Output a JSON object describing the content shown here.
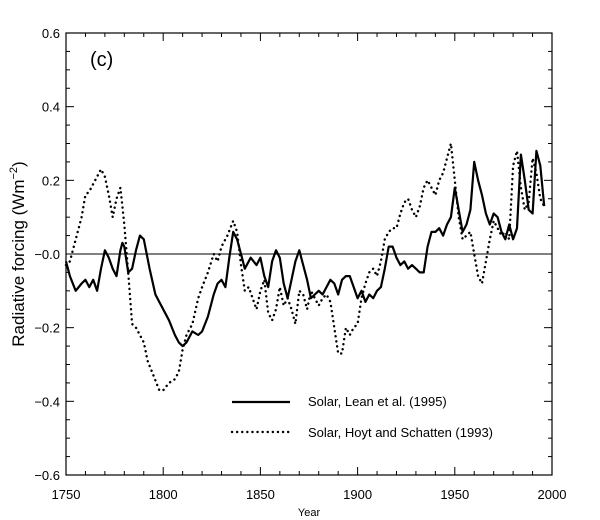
{
  "chart_data": {
    "type": "line",
    "panel_label": "(c)",
    "xlabel": "Year",
    "ylabel_main": "Radiative forcing (Wm",
    "ylabel_sup": "−2",
    "ylabel_close": ")",
    "xlim": [
      1750,
      2000
    ],
    "ylim": [
      -0.6,
      0.6
    ],
    "xticks": [
      1750,
      1800,
      1850,
      1900,
      1950,
      2000
    ],
    "xtick_labels": [
      "1750",
      "1800",
      "1850",
      "1900",
      "1950",
      "2000"
    ],
    "yticks": [
      -0.6,
      -0.4,
      -0.2,
      0.0,
      0.2,
      0.4,
      0.6
    ],
    "ytick_labels": [
      "−0.6",
      "−0.4",
      "−0.2",
      "−0.0",
      "0.2",
      "0.4",
      "0.6"
    ],
    "zero_line": true,
    "legend_placement": "bottom-center",
    "series": [
      {
        "name": "Solar, Lean et al. (1995)",
        "style": "solid",
        "x": [
          1750,
          1752,
          1755,
          1758,
          1760,
          1762,
          1764,
          1766,
          1768,
          1770,
          1772,
          1774,
          1776,
          1778,
          1779,
          1780,
          1782,
          1784,
          1786,
          1788,
          1790,
          1793,
          1796,
          1800,
          1803,
          1806,
          1808,
          1810,
          1812,
          1815,
          1818,
          1820,
          1823,
          1826,
          1828,
          1830,
          1832,
          1834,
          1836,
          1838,
          1840,
          1842,
          1845,
          1848,
          1850,
          1852,
          1854,
          1856,
          1858,
          1860,
          1862,
          1864,
          1866,
          1868,
          1870,
          1872,
          1874,
          1876,
          1878,
          1880,
          1882,
          1884,
          1886,
          1888,
          1890,
          1892,
          1894,
          1896,
          1898,
          1900,
          1902,
          1904,
          1906,
          1908,
          1910,
          1912,
          1914,
          1916,
          1918,
          1920,
          1922,
          1924,
          1926,
          1928,
          1930,
          1932,
          1934,
          1936,
          1938,
          1940,
          1942,
          1944,
          1946,
          1948,
          1950,
          1952,
          1954,
          1956,
          1958,
          1960,
          1962,
          1964,
          1966,
          1968,
          1970,
          1972,
          1974,
          1976,
          1978,
          1980,
          1982,
          1984,
          1986,
          1988,
          1990,
          1992,
          1994,
          1996
        ],
        "y": [
          -0.02,
          -0.06,
          -0.1,
          -0.08,
          -0.07,
          -0.09,
          -0.07,
          -0.1,
          -0.04,
          0.01,
          -0.01,
          -0.04,
          -0.06,
          0.01,
          0.03,
          0.02,
          -0.05,
          -0.04,
          0.01,
          0.05,
          0.04,
          -0.04,
          -0.11,
          -0.15,
          -0.18,
          -0.22,
          -0.24,
          -0.25,
          -0.24,
          -0.21,
          -0.22,
          -0.21,
          -0.17,
          -0.11,
          -0.08,
          -0.07,
          -0.09,
          -0.01,
          0.06,
          0.04,
          0.0,
          -0.04,
          -0.01,
          -0.03,
          -0.01,
          -0.06,
          -0.09,
          -0.02,
          0.01,
          -0.01,
          -0.08,
          -0.12,
          -0.07,
          -0.02,
          0.01,
          -0.03,
          -0.07,
          -0.12,
          -0.11,
          -0.1,
          -0.11,
          -0.09,
          -0.07,
          -0.08,
          -0.11,
          -0.07,
          -0.06,
          -0.06,
          -0.09,
          -0.12,
          -0.1,
          -0.13,
          -0.11,
          -0.12,
          -0.1,
          -0.09,
          -0.04,
          0.02,
          0.02,
          -0.01,
          -0.03,
          -0.02,
          -0.04,
          -0.03,
          -0.04,
          -0.05,
          -0.05,
          0.02,
          0.06,
          0.06,
          0.07,
          0.05,
          0.08,
          0.1,
          0.18,
          0.12,
          0.06,
          0.08,
          0.12,
          0.25,
          0.2,
          0.16,
          0.11,
          0.08,
          0.11,
          0.1,
          0.06,
          0.04,
          0.08,
          0.04,
          0.07,
          0.27,
          0.2,
          0.12,
          0.11,
          0.28,
          0.24,
          0.13
        ]
      },
      {
        "name": "Solar, Hoyt and Schatten (1993)",
        "style": "dotted",
        "x": [
          1750,
          1752,
          1754,
          1756,
          1758,
          1760,
          1762,
          1764,
          1766,
          1768,
          1770,
          1772,
          1774,
          1776,
          1778,
          1780,
          1782,
          1784,
          1786,
          1788,
          1790,
          1792,
          1795,
          1798,
          1800,
          1803,
          1806,
          1808,
          1810,
          1812,
          1815,
          1818,
          1820,
          1823,
          1826,
          1828,
          1830,
          1833,
          1836,
          1838,
          1840,
          1842,
          1844,
          1846,
          1848,
          1850,
          1852,
          1854,
          1856,
          1858,
          1860,
          1862,
          1864,
          1866,
          1868,
          1870,
          1872,
          1874,
          1876,
          1878,
          1880,
          1882,
          1884,
          1886,
          1888,
          1890,
          1892,
          1894,
          1896,
          1898,
          1900,
          1902,
          1904,
          1906,
          1908,
          1910,
          1912,
          1914,
          1916,
          1918,
          1920,
          1922,
          1924,
          1926,
          1928,
          1930,
          1932,
          1934,
          1936,
          1938,
          1940,
          1942,
          1944,
          1946,
          1948,
          1950,
          1952,
          1954,
          1956,
          1958,
          1960,
          1962,
          1964,
          1966,
          1968,
          1970,
          1972,
          1974,
          1976,
          1978,
          1980,
          1982,
          1984,
          1986,
          1988,
          1990,
          1992,
          1994,
          1996
        ],
        "y": [
          -0.03,
          -0.02,
          0.02,
          0.06,
          0.1,
          0.16,
          0.17,
          0.19,
          0.21,
          0.23,
          0.21,
          0.16,
          0.1,
          0.15,
          0.18,
          0.08,
          -0.05,
          -0.19,
          -0.2,
          -0.22,
          -0.24,
          -0.29,
          -0.33,
          -0.37,
          -0.37,
          -0.35,
          -0.34,
          -0.32,
          -0.26,
          -0.22,
          -0.19,
          -0.12,
          -0.09,
          -0.05,
          0.0,
          -0.02,
          0.02,
          0.05,
          0.09,
          0.06,
          -0.03,
          -0.1,
          -0.09,
          -0.12,
          -0.15,
          -0.1,
          -0.07,
          -0.16,
          -0.18,
          -0.15,
          -0.09,
          -0.14,
          -0.12,
          -0.15,
          -0.19,
          -0.1,
          -0.11,
          -0.15,
          -0.1,
          -0.12,
          -0.14,
          -0.12,
          -0.11,
          -0.13,
          -0.2,
          -0.27,
          -0.27,
          -0.2,
          -0.22,
          -0.2,
          -0.19,
          -0.12,
          -0.08,
          -0.05,
          -0.04,
          -0.06,
          -0.02,
          0.04,
          0.06,
          0.07,
          0.07,
          0.11,
          0.14,
          0.15,
          0.12,
          0.1,
          0.13,
          0.18,
          0.2,
          0.18,
          0.16,
          0.2,
          0.22,
          0.26,
          0.3,
          0.2,
          0.1,
          0.04,
          0.05,
          0.06,
          0.0,
          -0.06,
          -0.08,
          -0.02,
          0.04,
          0.09,
          0.07,
          0.05,
          0.06,
          0.04,
          0.24,
          0.28,
          0.18,
          0.12,
          0.14,
          0.26,
          0.22,
          0.15,
          0.13
        ]
      }
    ]
  }
}
